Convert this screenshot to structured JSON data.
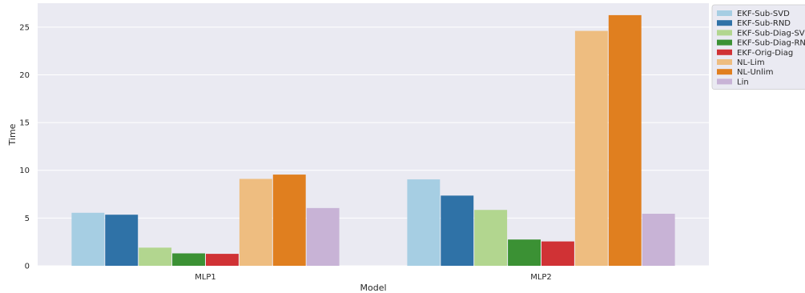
{
  "chart_data": {
    "type": "bar",
    "categories": [
      "MLP1",
      "MLP2"
    ],
    "xlabel": "Model",
    "ylabel": "Time",
    "ylim": [
      0,
      27.5
    ],
    "yticks": [
      0,
      5,
      10,
      15,
      20,
      25
    ],
    "grid": true,
    "legend_position": "top-right",
    "series": [
      {
        "name": "EKF-Sub-SVD",
        "color": "#a6cee3",
        "values": [
          5.55,
          9.05
        ]
      },
      {
        "name": "EKF-Sub-RND",
        "color": "#2f72a7",
        "values": [
          5.35,
          7.35
        ]
      },
      {
        "name": "EKF-Sub-Diag-SVD",
        "color": "#b2d68f",
        "values": [
          1.9,
          5.85
        ]
      },
      {
        "name": "EKF-Sub-Diag-RND",
        "color": "#3b9134",
        "values": [
          1.3,
          2.75
        ]
      },
      {
        "name": "EKF-Orig-Diag",
        "color": "#d03235",
        "values": [
          1.25,
          2.55
        ]
      },
      {
        "name": "NL-Lim",
        "color": "#eebd80",
        "values": [
          9.1,
          24.6
        ]
      },
      {
        "name": "NL-Unlim",
        "color": "#e07f1f",
        "values": [
          9.55,
          26.25
        ]
      },
      {
        "name": "Lin",
        "color": "#c8b3d6",
        "values": [
          6.05,
          5.45
        ]
      }
    ]
  }
}
